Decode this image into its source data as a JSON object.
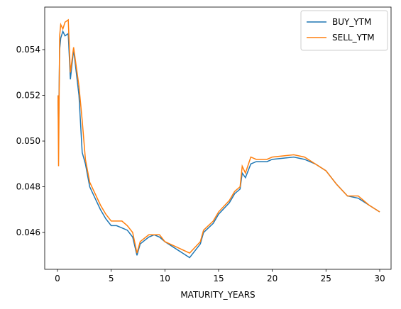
{
  "chart_data": {
    "type": "line",
    "xlabel": "MATURITY_YEARS",
    "x": [
      0.05,
      0.1,
      0.2,
      0.3,
      0.5,
      0.7,
      1.0,
      1.2,
      1.5,
      2.0,
      2.3,
      2.6,
      3.0,
      3.5,
      4.0,
      4.5,
      5.0,
      5.5,
      6.0,
      6.5,
      7.0,
      7.4,
      7.7,
      8.5,
      9.0,
      9.5,
      10.0,
      12.3,
      13.3,
      13.6,
      14.5,
      15.0,
      16.0,
      16.5,
      17.0,
      17.2,
      17.5,
      18.0,
      18.5,
      19.0,
      19.5,
      20.0,
      22.0,
      23.0,
      24.0,
      25.0,
      26.0,
      27.0,
      28.0,
      29.0,
      30.0
    ],
    "series": [
      {
        "name": "BUY_YTM",
        "color": "#1f77b4",
        "values": [
          0.0518,
          0.0505,
          0.054,
          0.0545,
          0.0548,
          0.0546,
          0.0547,
          0.0527,
          0.054,
          0.052,
          0.0495,
          0.049,
          0.048,
          0.0475,
          0.047,
          0.0466,
          0.0463,
          0.0463,
          0.0462,
          0.0461,
          0.0458,
          0.045,
          0.0455,
          0.0458,
          0.0459,
          0.0458,
          0.0456,
          0.0449,
          0.0455,
          0.046,
          0.0464,
          0.0468,
          0.0473,
          0.0477,
          0.0479,
          0.0486,
          0.0484,
          0.049,
          0.0491,
          0.0491,
          0.0491,
          0.0492,
          0.0493,
          0.0492,
          0.049,
          0.0487,
          0.0481,
          0.0476,
          0.0475,
          0.0472,
          0.0469
        ]
      },
      {
        "name": "SELL_YTM",
        "color": "#ff7f0e",
        "values": [
          0.052,
          0.0489,
          0.0546,
          0.0551,
          0.0549,
          0.0552,
          0.0553,
          0.053,
          0.0541,
          0.0524,
          0.0509,
          0.0492,
          0.0482,
          0.0477,
          0.0472,
          0.0468,
          0.0465,
          0.0465,
          0.0465,
          0.0463,
          0.046,
          0.0451,
          0.0456,
          0.0459,
          0.0459,
          0.0459,
          0.0456,
          0.0451,
          0.0456,
          0.0461,
          0.0465,
          0.0469,
          0.0474,
          0.0478,
          0.048,
          0.0489,
          0.0486,
          0.0493,
          0.0492,
          0.0492,
          0.0492,
          0.0493,
          0.0494,
          0.0493,
          0.049,
          0.0487,
          0.0481,
          0.0476,
          0.0476,
          0.0472,
          0.0469
        ]
      }
    ],
    "xlim": [
      -1.19,
      31.06
    ],
    "ylim": [
      0.04439,
      0.05586
    ],
    "xticks": [
      0,
      5,
      10,
      15,
      20,
      25,
      30
    ],
    "yticks": [
      0.046,
      0.048,
      {
        "value": 0.05,
        "label": "0.050"
      },
      0.052,
      0.054
    ],
    "legend": "upper right"
  }
}
